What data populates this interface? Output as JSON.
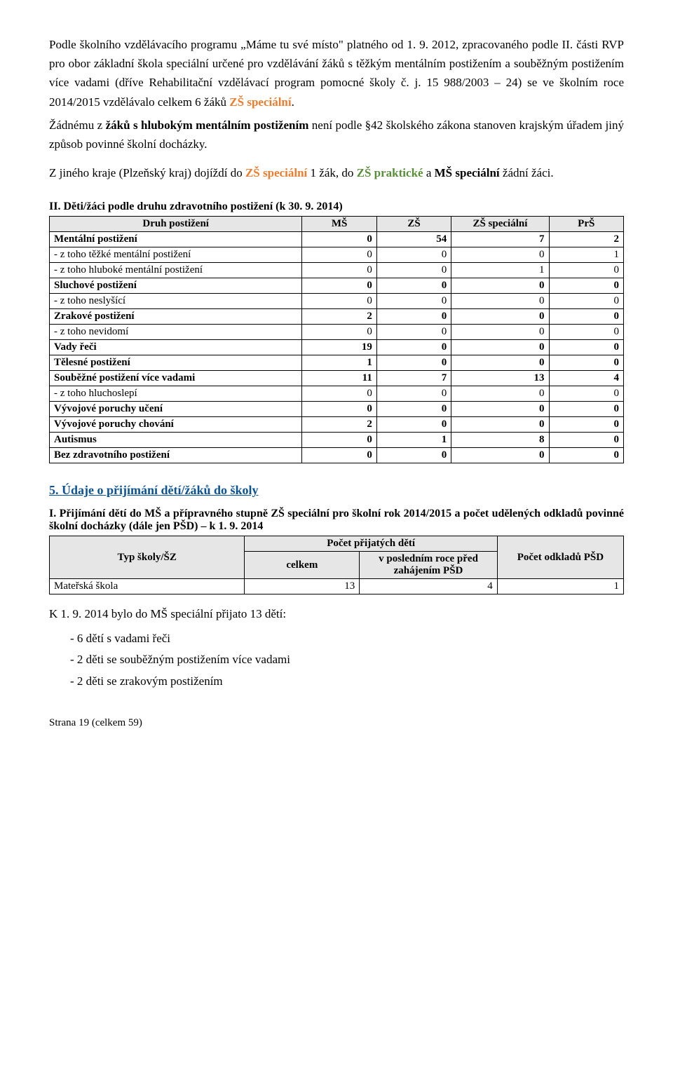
{
  "para1_a": "Podle školního vzdělávacího programu „Máme tu své místo\" platného od 1. 9. 2012, zpracovaného podle II. části RVP pro obor základní škola speciální určené pro vzdělávání žáků s těžkým mentálním postižením a souběžným postižením více vadami (dříve Rehabilitační vzdělávací program pomocné školy č. j. 15 988/2003 – 24) se ve školním roce 2014/2015 vzdělávalo celkem 6 žáků ",
  "para1_b": "ZŠ speciální",
  "para1_c": ".",
  "para2_a": "Žádnému z ",
  "para2_b": "žáků s hlubokým mentálním postižením",
  "para2_c": " není podle §42 školského zákona stanoven krajským úřadem jiný způsob povinné školní docházky.",
  "para3_a": "Z jiného kraje (Plzeňský kraj) dojíždí do ",
  "para3_b": "ZŠ speciální",
  "para3_c": " 1 žák, do ",
  "para3_d": "ZŠ praktické",
  "para3_e": " a ",
  "para3_f": "MŠ speciální",
  "para3_g": " žádní žáci.",
  "table2_title": "II. Děti/žáci podle druhu zdravotního postižení (k 30. 9. 2014)",
  "t2_headers": {
    "c1": "Druh postižení",
    "c2": "MŠ",
    "c3": "ZŠ",
    "c4": "ZŠ speciální",
    "c5": "PrŠ"
  },
  "t2_rows": [
    {
      "label": "Mentální postižení",
      "bold": true,
      "v": [
        "0",
        "54",
        "7",
        "2"
      ]
    },
    {
      "label": "- z toho těžké mentální postižení",
      "bold": false,
      "v": [
        "0",
        "0",
        "0",
        "1"
      ]
    },
    {
      "label": "- z toho hluboké mentální postižení",
      "bold": false,
      "v": [
        "0",
        "0",
        "1",
        "0"
      ]
    },
    {
      "label": "Sluchové postižení",
      "bold": true,
      "v": [
        "0",
        "0",
        "0",
        "0"
      ]
    },
    {
      "label": "- z toho neslyšící",
      "bold": false,
      "v": [
        "0",
        "0",
        "0",
        "0"
      ]
    },
    {
      "label": "Zrakové postižení",
      "bold": true,
      "v": [
        "2",
        "0",
        "0",
        "0"
      ]
    },
    {
      "label": "- z toho nevidomí",
      "bold": false,
      "v": [
        "0",
        "0",
        "0",
        "0"
      ]
    },
    {
      "label": "Vady řeči",
      "bold": true,
      "v": [
        "19",
        "0",
        "0",
        "0"
      ]
    },
    {
      "label": "Tělesné postižení",
      "bold": true,
      "v": [
        "1",
        "0",
        "0",
        "0"
      ]
    },
    {
      "label": "Souběžné postižení více vadami",
      "bold": true,
      "v": [
        "11",
        "7",
        "13",
        "4"
      ]
    },
    {
      "label": "- z toho hluchoslepí",
      "bold": false,
      "v": [
        "0",
        "0",
        "0",
        "0"
      ]
    },
    {
      "label": "Vývojové  poruchy učení",
      "bold": true,
      "v": [
        "0",
        "0",
        "0",
        "0"
      ]
    },
    {
      "label": "Vývojové  poruchy chování",
      "bold": true,
      "v": [
        "2",
        "0",
        "0",
        "0"
      ]
    },
    {
      "label": "Autismus",
      "bold": true,
      "v": [
        "0",
        "1",
        "8",
        "0"
      ]
    },
    {
      "label": "Bez zdravotního postižení",
      "bold": true,
      "v": [
        "0",
        "0",
        "0",
        "0"
      ]
    }
  ],
  "section5": "5. Údaje o přijímání dětí/žáků do školy",
  "sub1": "I. Přijímání dětí do MŠ a přípravného stupně ZŠ speciální pro školní rok 2014/2015 a počet udělených odkladů povinné školní docházky (dále jen PŠD) – k 1. 9. 2014",
  "t3_headers": {
    "typ": "Typ školy/ŠZ",
    "prij": "Počet přijatých dětí",
    "celkem": "celkem",
    "posl": "v posledním roce před zahájením PŠD",
    "odkl": "Počet odkladů PŠD"
  },
  "t3_row": {
    "label": "Mateřská škola",
    "v": [
      "13",
      "4",
      "1"
    ]
  },
  "para4": "K 1. 9. 2014 bylo do MŠ speciální přijato 13 dětí:",
  "bullets": [
    "6 dětí s vadami řeči",
    "2 děti se souběžným postižením více vadami",
    "2 děti se zrakovým postižením"
  ],
  "footer": "Strana 19 (celkem 59)"
}
